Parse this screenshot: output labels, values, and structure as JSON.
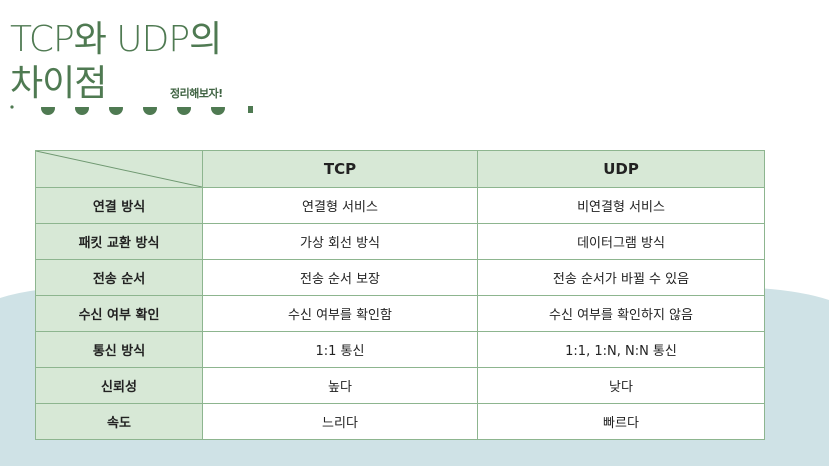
{
  "title": {
    "line1": "TCP와 UDP의",
    "line2": "차이점",
    "subtitle": "정리해보자!"
  },
  "colors": {
    "accent_green": "#4f7a52",
    "header_fill": "#d7e8d6",
    "border": "#8db58f",
    "background_wave": "#cfe2e6"
  },
  "table": {
    "columns": [
      "",
      "TCP",
      "UDP"
    ],
    "rows": [
      {
        "label": "연결 방식",
        "tcp": "연결형 서비스",
        "udp": "비연결형 서비스"
      },
      {
        "label": "패킷 교환 방식",
        "tcp": "가상 회선 방식",
        "udp": "데이터그램 방식"
      },
      {
        "label": "전송 순서",
        "tcp": "전송 순서 보장",
        "udp": "전송 순서가 바뀔 수 있음"
      },
      {
        "label": "수신 여부 확인",
        "tcp": "수신 여부를 확인함",
        "udp": "수신 여부를 확인하지 않음"
      },
      {
        "label": "통신 방식",
        "tcp": "1:1 통신",
        "udp": "1:1, 1:N, N:N 통신"
      },
      {
        "label": "신뢰성",
        "tcp": "높다",
        "udp": "낮다"
      },
      {
        "label": "속도",
        "tcp": "느리다",
        "udp": "빠르다"
      }
    ]
  }
}
